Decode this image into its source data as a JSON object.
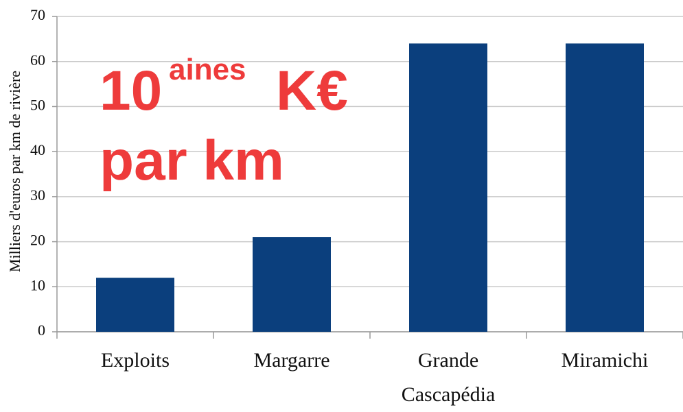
{
  "chart_data": {
    "type": "bar",
    "y_label": "Milliers d'euros par km de rivière",
    "categories": [
      "Exploits",
      "Margarre",
      "Grande Cascapédia",
      "Miramichi"
    ],
    "values": [
      12,
      21,
      64,
      64
    ],
    "color": "#0b3f7d",
    "ylim": [
      0,
      70
    ],
    "yticks": [
      0,
      10,
      20,
      30,
      40,
      50,
      60,
      70
    ],
    "grid": true,
    "annotation": {
      "number": "10",
      "superscript": "aines",
      "unit": "K€",
      "line2": "par km"
    }
  }
}
